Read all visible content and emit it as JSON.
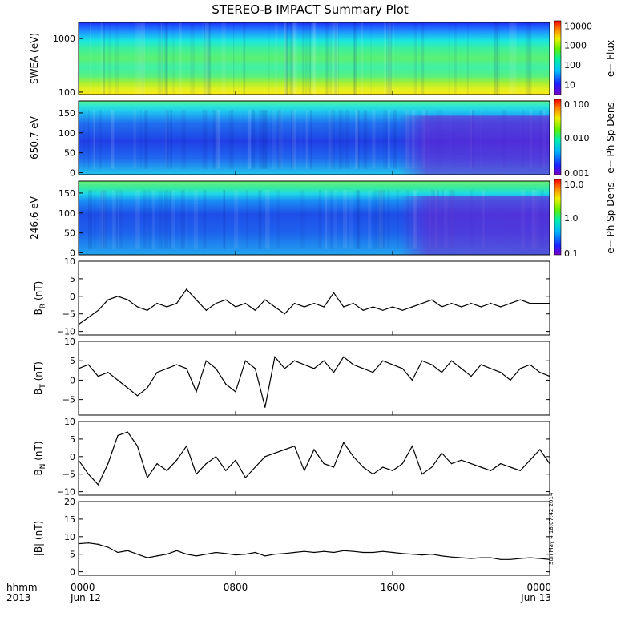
{
  "title": "STEREO-B IMPACT Summary Plot",
  "timestamp": "Sun May  4 18:07:42 2014",
  "x_axis": {
    "row_label_1": "hhmm",
    "row_label_2": "2013",
    "ticks": [
      {
        "hhmm": "0000",
        "date": "Jun 12",
        "hour": 0
      },
      {
        "hhmm": "0800",
        "date": "",
        "hour": 8
      },
      {
        "hhmm": "1600",
        "date": "",
        "hour": 16
      },
      {
        "hhmm": "0000",
        "date": "Jun 13",
        "hour": 24
      }
    ],
    "range_hours": [
      0,
      24
    ]
  },
  "spectrograms": [
    {
      "id": "swea",
      "ylabel": "SWEA (eV)",
      "yscale": "log",
      "ylim": [
        90,
        2000
      ],
      "yticks": [
        {
          "v": 100,
          "label": "100"
        },
        {
          "v": 1000,
          "label": "1000"
        }
      ],
      "colorbar": {
        "label": "e− Flux",
        "scale": "log",
        "ticks": [
          {
            "v": 10000,
            "label": "10000"
          },
          {
            "v": 1000,
            "label": "1000"
          },
          {
            "v": 100,
            "label": "100"
          },
          {
            "v": 10,
            "label": "10"
          }
        ],
        "range": [
          3,
          15000
        ]
      }
    },
    {
      "id": "pad650",
      "ylabel": "650.7 eV",
      "yscale": "linear",
      "ylim": [
        -5,
        180
      ],
      "yticks": [
        {
          "v": 0,
          "label": "0"
        },
        {
          "v": 50,
          "label": "50"
        },
        {
          "v": 100,
          "label": "100"
        },
        {
          "v": 150,
          "label": "150"
        }
      ],
      "colorbar": {
        "label": "e− Ph Sp Dens",
        "scale": "log",
        "ticks": [
          {
            "v": 0.1,
            "label": "0.100"
          },
          {
            "v": 0.01,
            "label": "0.010"
          },
          {
            "v": 0.001,
            "label": "0.001"
          }
        ],
        "range": [
          0.001,
          0.1
        ]
      }
    },
    {
      "id": "pad246",
      "ylabel": "246.6 eV",
      "yscale": "linear",
      "ylim": [
        -5,
        180
      ],
      "yticks": [
        {
          "v": 0,
          "label": "0"
        },
        {
          "v": 50,
          "label": "50"
        },
        {
          "v": 100,
          "label": "100"
        },
        {
          "v": 150,
          "label": "150"
        }
      ],
      "colorbar": {
        "label": "e− Ph Sp Dens",
        "scale": "log",
        "ticks": [
          {
            "v": 10,
            "label": "10.0"
          },
          {
            "v": 1,
            "label": "1.0"
          },
          {
            "v": 0.1,
            "label": "0.1"
          }
        ],
        "range": [
          0.1,
          10
        ]
      }
    }
  ],
  "chart_data": [
    {
      "id": "br",
      "type": "line",
      "ylabel": "B",
      "ylabel_sub": "R",
      "ylabel_unit": " (nT)",
      "ylim": [
        -11,
        10
      ],
      "yticks": [
        {
          "v": -10,
          "label": "−10"
        },
        {
          "v": -5,
          "label": "−5"
        },
        {
          "v": 0,
          "label": "0"
        },
        {
          "v": 5,
          "label": "5"
        },
        {
          "v": 10,
          "label": "10"
        }
      ],
      "x": [
        0,
        0.5,
        1,
        1.5,
        2,
        2.5,
        3,
        3.5,
        4,
        4.5,
        5,
        5.5,
        6,
        6.5,
        7,
        7.5,
        8,
        8.5,
        9,
        9.5,
        10,
        10.5,
        11,
        11.5,
        12,
        12.5,
        13,
        13.5,
        14,
        14.5,
        15,
        15.5,
        16,
        16.5,
        17,
        17.5,
        18,
        18.5,
        19,
        19.5,
        20,
        20.5,
        21,
        21.5,
        22,
        22.5,
        23,
        23.5,
        24
      ],
      "values": [
        -8,
        -6,
        -4,
        -1,
        0,
        -1,
        -3,
        -4,
        -2,
        -3,
        -2,
        2,
        -1,
        -4,
        -2,
        -1,
        -3,
        -2,
        -4,
        -1,
        -3,
        -5,
        -2,
        -3,
        -2,
        -3,
        1,
        -3,
        -2,
        -4,
        -3,
        -4,
        -3,
        -4,
        -3,
        -2,
        -1,
        -3,
        -2,
        -3,
        -2,
        -3,
        -2,
        -3,
        -2,
        -1,
        -2,
        -2,
        -2
      ]
    },
    {
      "id": "bt",
      "type": "line",
      "ylabel": "B",
      "ylabel_sub": "T",
      "ylabel_unit": " (nT)",
      "ylim": [
        -9,
        10
      ],
      "yticks": [
        {
          "v": -5,
          "label": "−5"
        },
        {
          "v": 0,
          "label": "0"
        },
        {
          "v": 5,
          "label": "5"
        },
        {
          "v": 10,
          "label": "10"
        }
      ],
      "x": [
        0,
        0.5,
        1,
        1.5,
        2,
        2.5,
        3,
        3.5,
        4,
        4.5,
        5,
        5.5,
        6,
        6.5,
        7,
        7.5,
        8,
        8.5,
        9,
        9.5,
        10,
        10.5,
        11,
        11.5,
        12,
        12.5,
        13,
        13.5,
        14,
        14.5,
        15,
        15.5,
        16,
        16.5,
        17,
        17.5,
        18,
        18.5,
        19,
        19.5,
        20,
        20.5,
        21,
        21.5,
        22,
        22.5,
        23,
        23.5,
        24
      ],
      "values": [
        3,
        4,
        1,
        2,
        0,
        -2,
        -4,
        -2,
        2,
        3,
        4,
        3,
        -3,
        5,
        3,
        -1,
        -3,
        5,
        3,
        -7,
        6,
        3,
        5,
        4,
        3,
        5,
        2,
        6,
        4,
        3,
        2,
        5,
        4,
        3,
        0,
        5,
        4,
        2,
        5,
        3,
        1,
        4,
        3,
        2,
        0,
        3,
        4,
        2,
        1
      ]
    },
    {
      "id": "bn",
      "type": "line",
      "ylabel": "B",
      "ylabel_sub": "N",
      "ylabel_unit": " (nT)",
      "ylim": [
        -11,
        10
      ],
      "yticks": [
        {
          "v": -10,
          "label": "−10"
        },
        {
          "v": -5,
          "label": "−5"
        },
        {
          "v": 0,
          "label": "0"
        },
        {
          "v": 5,
          "label": "5"
        },
        {
          "v": 10,
          "label": "10"
        }
      ],
      "x": [
        0,
        0.5,
        1,
        1.5,
        2,
        2.5,
        3,
        3.5,
        4,
        4.5,
        5,
        5.5,
        6,
        6.5,
        7,
        7.5,
        8,
        8.5,
        9,
        9.5,
        10,
        10.5,
        11,
        11.5,
        12,
        12.5,
        13,
        13.5,
        14,
        14.5,
        15,
        15.5,
        16,
        16.5,
        17,
        17.5,
        18,
        18.5,
        19,
        19.5,
        20,
        20.5,
        21,
        21.5,
        22,
        22.5,
        23,
        23.5,
        24
      ],
      "values": [
        -1,
        -5,
        -8,
        -2,
        6,
        7,
        3,
        -6,
        -2,
        -4,
        -1,
        3,
        -5,
        -2,
        0,
        -4,
        -1,
        -6,
        -3,
        0,
        1,
        2,
        3,
        -4,
        2,
        -2,
        -3,
        4,
        0,
        -3,
        -5,
        -3,
        -4,
        -2,
        3,
        -5,
        -3,
        1,
        -2,
        -1,
        -2,
        -3,
        -4,
        -2,
        -3,
        -4,
        -1,
        2,
        -2
      ]
    },
    {
      "id": "bmag",
      "type": "line",
      "ylabel": "|B| (nT)",
      "ylabel_sub": "",
      "ylabel_unit": "",
      "ylim": [
        -1,
        20
      ],
      "yticks": [
        {
          "v": 0,
          "label": "0"
        },
        {
          "v": 5,
          "label": "5"
        },
        {
          "v": 10,
          "label": "10"
        },
        {
          "v": 15,
          "label": "15"
        },
        {
          "v": 20,
          "label": "20"
        }
      ],
      "x": [
        0,
        0.5,
        1,
        1.5,
        2,
        2.5,
        3,
        3.5,
        4,
        4.5,
        5,
        5.5,
        6,
        6.5,
        7,
        7.5,
        8,
        8.5,
        9,
        9.5,
        10,
        10.5,
        11,
        11.5,
        12,
        12.5,
        13,
        13.5,
        14,
        14.5,
        15,
        15.5,
        16,
        16.5,
        17,
        17.5,
        18,
        18.5,
        19,
        19.5,
        20,
        20.5,
        21,
        21.5,
        22,
        22.5,
        23,
        23.5,
        24
      ],
      "values": [
        8,
        8.2,
        7.8,
        7,
        5.5,
        6,
        5,
        4,
        4.5,
        5,
        6,
        5,
        4.5,
        5,
        5.5,
        5.2,
        4.8,
        5,
        5.5,
        4.5,
        5,
        5.2,
        5.5,
        5.8,
        5.5,
        5.8,
        5.5,
        6,
        5.8,
        5.5,
        5.5,
        5.8,
        5.5,
        5.2,
        5,
        4.8,
        5,
        4.5,
        4.2,
        4,
        3.8,
        4,
        4,
        3.5,
        3.5,
        3.8,
        4,
        3.8,
        3.5
      ]
    }
  ]
}
